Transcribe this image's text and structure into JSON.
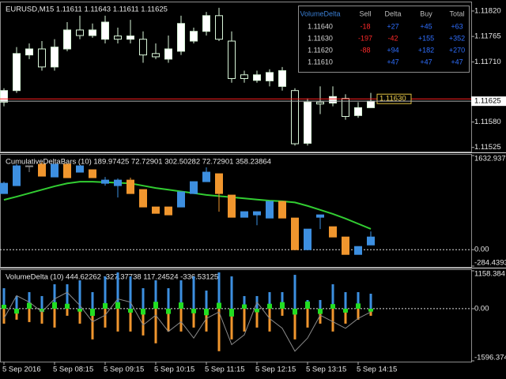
{
  "chart_data": [
    {
      "type": "candlestick",
      "title": "EURUSD,M15 1.11611 1.11643 1.11611 1.11625",
      "open": [
        1.11623,
        1.11648,
        1.11725,
        1.11738,
        1.11699,
        1.11738,
        1.11779,
        1.11767,
        1.11759,
        1.11766,
        1.11759,
        1.11759,
        1.11728,
        1.11716,
        1.11733,
        1.11755,
        1.11776,
        1.1181,
        1.11755,
        1.11682,
        1.1167,
        1.11669,
        1.11657,
        1.11648,
        1.11534,
        1.11623,
        1.11621,
        1.11631,
        1.11594,
        1.11611
      ],
      "high": [
        1.11653,
        1.11742,
        1.1175,
        1.11755,
        1.11759,
        1.11796,
        1.1181,
        1.11793,
        1.1181,
        1.11784,
        1.11801,
        1.11776,
        1.1175,
        1.11767,
        1.1181,
        1.11784,
        1.11818,
        1.11827,
        1.11776,
        1.11691,
        1.11691,
        1.11694,
        1.11699,
        1.11653,
        1.11631,
        1.11657,
        1.11657,
        1.1164,
        1.11623,
        1.11643
      ],
      "low": [
        1.11614,
        1.11643,
        1.11716,
        1.11691,
        1.11691,
        1.11733,
        1.11759,
        1.11762,
        1.1175,
        1.1175,
        1.1175,
        1.11708,
        1.11716,
        1.11708,
        1.11725,
        1.1175,
        1.11767,
        1.11755,
        1.11665,
        1.11665,
        1.11665,
        1.11657,
        1.11648,
        1.11529,
        1.11529,
        1.11597,
        1.11614,
        1.11585,
        1.11589,
        1.11611
      ],
      "close": [
        1.11648,
        1.11728,
        1.11738,
        1.11699,
        1.11742,
        1.11779,
        1.11767,
        1.11779,
        1.11796,
        1.11759,
        1.11766,
        1.11725,
        1.11721,
        1.11738,
        1.11793,
        1.11776,
        1.1181,
        1.11759,
        1.11674,
        1.11674,
        1.11682,
        1.11687,
        1.11691,
        1.11533,
        1.11623,
        1.11619,
        1.11635,
        1.11592,
        1.11611,
        1.11625
      ],
      "up_color": "#ffffff",
      "down_color": "#000000",
      "wick_color": "#d8f5d8",
      "ylim": [
        1.11516,
        1.11837
      ],
      "yticks": [
        {
          "value": 1.1182,
          "label": "1.11820"
        },
        1.11765,
        {
          "value": 1.1171,
          "label": "1.11710"
        },
        {
          "value": 1.1158,
          "label": "1.11580"
        },
        1.11525
      ],
      "price_lines": [
        {
          "value": 1.1163,
          "label": "1.11630",
          "color": "#ff2020"
        },
        {
          "value": 1.11625,
          "label": "1.11625",
          "color": "#b0b0b0"
        }
      ]
    },
    {
      "type": "candlestick",
      "title": "CumulativeDeltaBars (10) 189.97425 72.72901 302.50282 72.72901 358.23864",
      "open": [
        974,
        1111,
        1454,
        1482,
        1262,
        1482,
        1345,
        1386,
        1152,
        1111,
        1207,
        1043,
        741,
        741,
        741,
        974,
        1180,
        1317,
        947,
        563,
        604,
        549,
        837,
        549,
        0,
        563,
        398,
        220,
        -82,
        82
      ],
      "high": [
        1180,
        1482,
        1454,
        1523,
        1482,
        1482,
        1454,
        1386,
        1262,
        1235,
        1249,
        1043,
        741,
        741,
        1002,
        1180,
        1427,
        1317,
        947,
        659,
        659,
        837,
        837,
        549,
        357,
        604,
        398,
        220,
        55,
        316
      ],
      "low": [
        974,
        1111,
        1345,
        1276,
        1262,
        1249,
        1345,
        1249,
        1111,
        906,
        974,
        741,
        631,
        604,
        741,
        974,
        1180,
        659,
        563,
        563,
        425,
        549,
        549,
        0,
        0,
        357,
        220,
        -82,
        -82,
        82
      ],
      "close": [
        1152,
        1454,
        1454,
        1276,
        1482,
        1249,
        1454,
        1249,
        1207,
        1207,
        974,
        741,
        631,
        604,
        1002,
        1180,
        1345,
        974,
        563,
        659,
        659,
        837,
        549,
        0,
        357,
        604,
        220,
        -82,
        55,
        220
      ],
      "up_color": "#3d8fe0",
      "down_color": "#f0962e",
      "neutral_color": "#8a8a8a",
      "line": {
        "color": "#32cd32",
        "values": [
          864,
          920,
          980,
          1040,
          1100,
          1150,
          1180,
          1180,
          1170,
          1160,
          1150,
          1110,
          1070,
          1040,
          1010,
          980,
          950,
          930,
          910,
          890,
          870,
          850,
          840,
          820,
          760,
          690,
          620,
          540,
          450,
          360
        ]
      },
      "ylim": [
        -284.4393,
        1632.937
      ],
      "yticks": [
        1632.937,
        {
          "value": 0,
          "label": "0.00"
        },
        -284.4393
      ],
      "zero_line": true
    },
    {
      "type": "volume_delta",
      "title": "VolumeDelta (10) 444.62262 -327.37738 117.24524 -336.53125",
      "categories": [
        "5 Sep 2016",
        null,
        null,
        null,
        "5 Sep 08:15",
        null,
        null,
        null,
        "5 Sep 09:15",
        null,
        null,
        null,
        "5 Sep 10:15",
        null,
        null,
        null,
        "5 Sep 11:15",
        null,
        null,
        null,
        "5 Sep 12:15",
        null,
        null,
        null,
        "5 Sep 13:15",
        null,
        null,
        null,
        "5 Sep 14:15",
        null
      ],
      "series": [
        {
          "color": "#3d8fe0",
          "values": [
            627,
            386,
            506,
            386,
            747,
            747,
            868,
            506,
            988,
            1109,
            988,
            627,
            868,
            627,
            868,
            988,
            554,
            1109,
            988,
            386,
            386,
            506,
            506,
            1036,
            265,
            265,
            747,
            506,
            506,
            458
          ]
        },
        {
          "color": "#f0962e",
          "values": [
            -458,
            -337,
            -410,
            -458,
            -578,
            -217,
            -458,
            -940,
            -578,
            -699,
            -699,
            -819,
            -1060,
            -699,
            -699,
            -578,
            -699,
            -1301,
            -940,
            -699,
            -578,
            -699,
            -217,
            -940,
            -578,
            -458,
            -699,
            -458,
            -337,
            -217
          ]
        },
        {
          "color": "#22dd22",
          "values": [
            120,
            -150,
            180,
            -100,
            200,
            150,
            -90,
            -220,
            170,
            200,
            -120,
            -180,
            210,
            -160,
            190,
            -140,
            -200,
            180,
            -240,
            130,
            -110,
            150,
            200,
            -180,
            220,
            -160,
            140,
            -120,
            160,
            -90
          ]
        }
      ],
      "line": {
        "color": "#8a8a8a",
        "values": [
          -300,
          400,
          200,
          -100,
          300,
          500,
          100,
          -400,
          -200,
          300,
          200,
          -500,
          -200,
          -700,
          -400,
          -900,
          -300,
          -100,
          -1100,
          -800,
          200,
          -300,
          -600,
          -1300,
          -900,
          -200,
          -400,
          -600,
          -300,
          -100
        ]
      },
      "ylim": [
        -1596.374,
        1158.384
      ],
      "yticks": [
        1158.384,
        {
          "value": 0,
          "label": "0.00"
        },
        -1596.374
      ],
      "zero_line": true
    }
  ],
  "table": {
    "header": [
      "VolumeDelta",
      "Sell",
      "Delta",
      "Buy",
      "Total"
    ],
    "rows": [
      [
        "1.11640",
        "-18",
        "+27",
        "+45",
        "+63"
      ],
      [
        "1.11630",
        "-197",
        "-42",
        "+155",
        "+352"
      ],
      [
        "1.11620",
        "-88",
        "+94",
        "+182",
        "+270"
      ],
      [
        "1.11610",
        null,
        "+47",
        "+47",
        "+47"
      ]
    ]
  }
}
